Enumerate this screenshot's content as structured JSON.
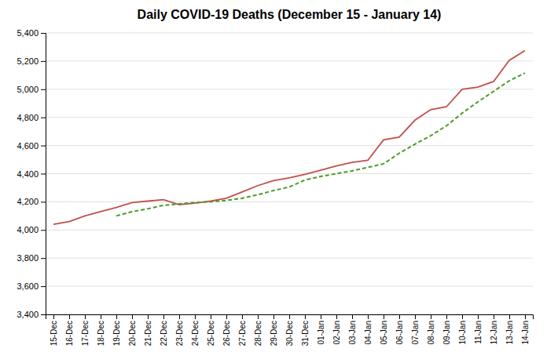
{
  "chart_data": {
    "type": "line",
    "title": "Daily COVID-19 Deaths (December 15 - January 14)",
    "categories": [
      "15-Dec",
      "16-Dec",
      "17-Dec",
      "18-Dec",
      "19-Dec",
      "20-Dec",
      "21-Dec",
      "22-Dec",
      "23-Dec",
      "24-Dec",
      "25-Dec",
      "26-Dec",
      "27-Dec",
      "28-Dec",
      "29-Dec",
      "30-Dec",
      "31-Dec",
      "01-Jan",
      "02-Jan",
      "03-Jan",
      "04-Jan",
      "05-Jan",
      "06-Jan",
      "07-Jan",
      "08-Jan",
      "09-Jan",
      "10-Jan",
      "11-Jan",
      "12-Jan",
      "13-Jan",
      "14-Jan"
    ],
    "series": [
      {
        "color": "#C0504D",
        "line_style": "solid",
        "values": [
          4040,
          4060,
          4100,
          4130,
          4160,
          4195,
          4205,
          4215,
          4180,
          4190,
          4205,
          4225,
          4270,
          4315,
          4350,
          4370,
          4395,
          4425,
          4455,
          4480,
          4495,
          4640,
          4660,
          4780,
          4855,
          4875,
          5000,
          5015,
          5055,
          5205,
          5275
        ]
      },
      {
        "color": "#4F9A29",
        "line_style": "dashed",
        "values": [
          null,
          null,
          null,
          null,
          4100,
          4130,
          4150,
          4175,
          4185,
          4195,
          4200,
          4210,
          4225,
          4250,
          4280,
          4305,
          4355,
          4380,
          4400,
          4420,
          4445,
          4470,
          4545,
          4610,
          4670,
          4740,
          4830,
          4910,
          4985,
          5060,
          5115
        ]
      }
    ],
    "ylim": [
      3400,
      5400
    ],
    "yticks": [
      {
        "value": 3400,
        "label": "3,400"
      },
      {
        "value": 3600,
        "label": "3,600"
      },
      {
        "value": 3800,
        "label": "3,800"
      },
      {
        "value": 4000,
        "label": "4,000"
      },
      {
        "value": 4200,
        "label": "4,200"
      },
      {
        "value": 4400,
        "label": "4,400"
      },
      {
        "value": 4600,
        "label": "4,600"
      },
      {
        "value": 4800,
        "label": "4,800"
      },
      {
        "value": 5000,
        "label": "5,000"
      },
      {
        "value": 5200,
        "label": "5,200"
      },
      {
        "value": 5400,
        "label": "5,400"
      }
    ],
    "grid": true
  }
}
